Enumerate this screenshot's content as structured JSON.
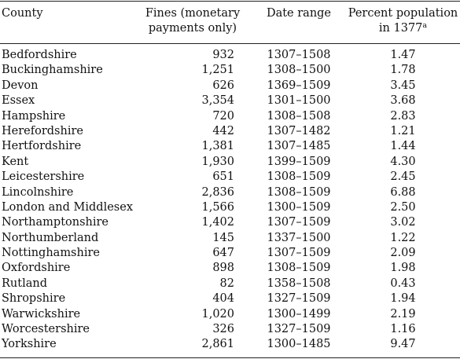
{
  "headers": {
    "county": "County",
    "fines_line1": "Fines (monetary",
    "fines_line2": "payments only)",
    "date_range": "Date range",
    "pct_line1": "Percent population",
    "pct_line2": "in 1377",
    "pct_footnote": "a"
  },
  "rows": [
    {
      "county": "Bedfordshire",
      "fines": "932",
      "date_range": "1307–1508",
      "pct": "1.47"
    },
    {
      "county": "Buckinghamshire",
      "fines": "1,251",
      "date_range": "1308–1500",
      "pct": "1.78"
    },
    {
      "county": "Devon",
      "fines": "626",
      "date_range": "1369–1509",
      "pct": "3.45"
    },
    {
      "county": "Essex",
      "fines": "3,354",
      "date_range": "1301–1500",
      "pct": "3.68"
    },
    {
      "county": "Hampshire",
      "fines": "720",
      "date_range": "1308–1508",
      "pct": "2.83"
    },
    {
      "county": "Herefordshire",
      "fines": "442",
      "date_range": "1307–1482",
      "pct": "1.21"
    },
    {
      "county": "Hertfordshire",
      "fines": "1,381",
      "date_range": "1307–1485",
      "pct": "1.44"
    },
    {
      "county": "Kent",
      "fines": "1,930",
      "date_range": "1399–1509",
      "pct": "4.30"
    },
    {
      "county": "Leicestershire",
      "fines": "651",
      "date_range": "1308–1509",
      "pct": "2.45"
    },
    {
      "county": "Lincolnshire",
      "fines": "2,836",
      "date_range": "1308–1509",
      "pct": "6.88"
    },
    {
      "county": "London and Middlesex",
      "fines": "1,566",
      "date_range": "1300–1509",
      "pct": "2.50"
    },
    {
      "county": "Northamptonshire",
      "fines": "1,402",
      "date_range": "1307–1509",
      "pct": "3.02"
    },
    {
      "county": "Northumberland",
      "fines": "145",
      "date_range": "1337–1500",
      "pct": "1.22"
    },
    {
      "county": "Nottinghamshire",
      "fines": "647",
      "date_range": "1307–1509",
      "pct": "2.09"
    },
    {
      "county": "Oxfordshire",
      "fines": "898",
      "date_range": "1308–1509",
      "pct": "1.98"
    },
    {
      "county": "Rutland",
      "fines": "82",
      "date_range": "1358–1508",
      "pct": "0.43"
    },
    {
      "county": "Shropshire",
      "fines": "404",
      "date_range": "1327–1509",
      "pct": "1.94"
    },
    {
      "county": "Warwickshire",
      "fines": "1,020",
      "date_range": "1300–1499",
      "pct": "2.19"
    },
    {
      "county": "Worcestershire",
      "fines": "326",
      "date_range": "1327–1509",
      "pct": "1.16"
    },
    {
      "county": "Yorkshire",
      "fines": "2,861",
      "date_range": "1300–1485",
      "pct": "9.47"
    }
  ]
}
